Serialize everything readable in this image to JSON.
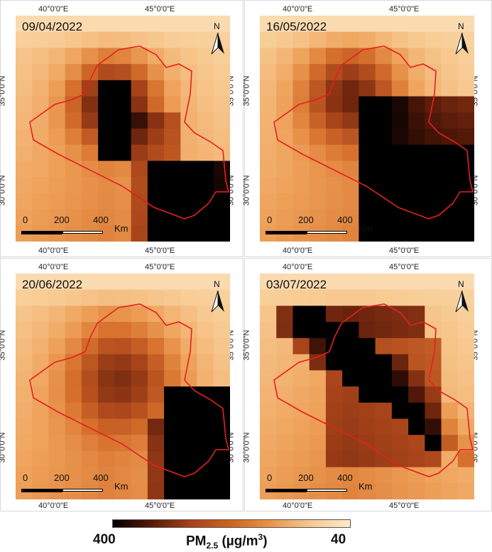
{
  "panels": [
    {
      "date": "09/04/2022",
      "x_ticks": [
        "40°0'0\"E",
        "45°0'0\"E"
      ],
      "y_ticks": [
        "35°0'0\"N",
        "30°0'0\"N"
      ],
      "hotspot": "central",
      "north": "N"
    },
    {
      "date": "16/05/2022",
      "x_ticks": [
        "40°0'0\"E",
        "45°0'0\"E"
      ],
      "y_ticks": [
        "35°0'0\"N",
        "30°0'0\"N"
      ],
      "hotspot": "southeast",
      "north": "N"
    },
    {
      "date": "20/06/2022",
      "x_ticks": [
        "40°0'0\"E",
        "45°0'0\"E"
      ],
      "y_ticks": [
        "35°0'0\"N",
        "30°0'0\"N"
      ],
      "hotspot": "east",
      "north": "N"
    },
    {
      "date": "03/07/2022",
      "x_ticks": [
        "40°0'0\"E",
        "45°0'0\"E"
      ],
      "y_ticks": [
        "35°0'0\"N",
        "30°0'0\"N"
      ],
      "hotspot": "diagonal",
      "north": "N"
    }
  ],
  "scalebar": {
    "labels": [
      "0",
      "200",
      "400"
    ],
    "unit": "Km"
  },
  "legend": {
    "min_label": "400",
    "max_label": "40",
    "title_main": "PM",
    "title_sub": "2.5",
    "title_unit_open": " (µg/m",
    "title_sup": "3",
    "title_unit_close": ")",
    "colors": [
      "#000000",
      "#5a1a08",
      "#a8421a",
      "#d0641d",
      "#e99548",
      "#f6c890",
      "#fde9c9"
    ]
  },
  "boundary_color": "#e32020"
}
